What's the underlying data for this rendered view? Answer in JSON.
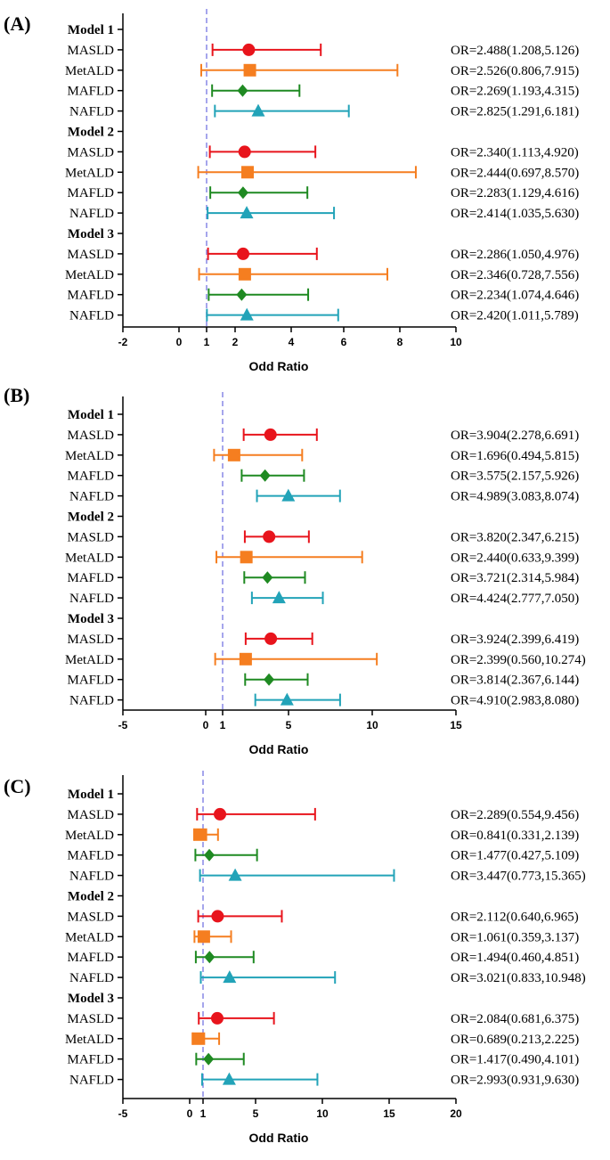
{
  "chart_data": [
    {
      "type": "forest",
      "panel_label": "(A)",
      "xlabel": "Odd Ratio",
      "xlim": [
        -2,
        10
      ],
      "xticks": [
        "-2",
        "0",
        "1",
        "2",
        "4",
        "6",
        "8",
        "10"
      ],
      "reference_line": 1,
      "models": [
        {
          "name": "Model 1",
          "rows": [
            {
              "label": "MASLD",
              "or": 2.488,
              "lo": 1.208,
              "hi": 5.126,
              "text": "OR=2.488(1.208,5.126)",
              "color": "#e8141c",
              "marker": "circle"
            },
            {
              "label": "MetALD",
              "or": 2.526,
              "lo": 0.806,
              "hi": 7.915,
              "text": "OR=2.526(0.806,7.915)",
              "color": "#f57e20",
              "marker": "square"
            },
            {
              "label": "MAFLD",
              "or": 2.269,
              "lo": 1.193,
              "hi": 4.315,
              "text": "OR=2.269(1.193,4.315)",
              "color": "#1f8a22",
              "marker": "diamond"
            },
            {
              "label": "NAFLD",
              "or": 2.825,
              "lo": 1.291,
              "hi": 6.181,
              "text": "OR=2.825(1.291,6.181)",
              "color": "#22a3b8",
              "marker": "triangle"
            }
          ]
        },
        {
          "name": "Model 2",
          "rows": [
            {
              "label": "MASLD",
              "or": 2.34,
              "lo": 1.113,
              "hi": 4.92,
              "text": "OR=2.340(1.113,4.920)",
              "color": "#e8141c",
              "marker": "circle"
            },
            {
              "label": "MetALD",
              "or": 2.444,
              "lo": 0.697,
              "hi": 8.57,
              "text": "OR=2.444(0.697,8.570)",
              "color": "#f57e20",
              "marker": "square"
            },
            {
              "label": "MAFLD",
              "or": 2.283,
              "lo": 1.129,
              "hi": 4.616,
              "text": "OR=2.283(1.129,4.616)",
              "color": "#1f8a22",
              "marker": "diamond"
            },
            {
              "label": "NAFLD",
              "or": 2.414,
              "lo": 1.035,
              "hi": 5.63,
              "text": "OR=2.414(1.035,5.630)",
              "color": "#22a3b8",
              "marker": "triangle"
            }
          ]
        },
        {
          "name": "Model 3",
          "rows": [
            {
              "label": "MASLD",
              "or": 2.286,
              "lo": 1.05,
              "hi": 4.976,
              "text": "OR=2.286(1.050,4.976)",
              "color": "#e8141c",
              "marker": "circle"
            },
            {
              "label": "MetALD",
              "or": 2.346,
              "lo": 0.728,
              "hi": 7.556,
              "text": "OR=2.346(0.728,7.556)",
              "color": "#f57e20",
              "marker": "square"
            },
            {
              "label": "MAFLD",
              "or": 2.234,
              "lo": 1.074,
              "hi": 4.646,
              "text": "OR=2.234(1.074,4.646)",
              "color": "#1f8a22",
              "marker": "diamond"
            },
            {
              "label": "NAFLD",
              "or": 2.42,
              "lo": 1.011,
              "hi": 5.789,
              "text": "OR=2.420(1.011,5.789)",
              "color": "#22a3b8",
              "marker": "triangle"
            }
          ]
        }
      ]
    },
    {
      "type": "forest",
      "panel_label": "(B)",
      "xlabel": "Odd Ratio",
      "xlim": [
        -5,
        15
      ],
      "xticks": [
        "-5",
        "0",
        "1",
        "5",
        "10",
        "15"
      ],
      "reference_line": 1,
      "models": [
        {
          "name": "Model 1",
          "rows": [
            {
              "label": "MASLD",
              "or": 3.904,
              "lo": 2.278,
              "hi": 6.691,
              "text": "OR=3.904(2.278,6.691)",
              "color": "#e8141c",
              "marker": "circle"
            },
            {
              "label": "MetALD",
              "or": 1.696,
              "lo": 0.494,
              "hi": 5.815,
              "text": "OR=1.696(0.494,5.815)",
              "color": "#f57e20",
              "marker": "square"
            },
            {
              "label": "MAFLD",
              "or": 3.575,
              "lo": 2.157,
              "hi": 5.926,
              "text": "OR=3.575(2.157,5.926)",
              "color": "#1f8a22",
              "marker": "diamond"
            },
            {
              "label": "NAFLD",
              "or": 4.989,
              "lo": 3.083,
              "hi": 8.074,
              "text": "OR=4.989(3.083,8.074)",
              "color": "#22a3b8",
              "marker": "triangle"
            }
          ]
        },
        {
          "name": "Model 2",
          "rows": [
            {
              "label": "MASLD",
              "or": 3.82,
              "lo": 2.347,
              "hi": 6.215,
              "text": "OR=3.820(2.347,6.215)",
              "color": "#e8141c",
              "marker": "circle"
            },
            {
              "label": "MetALD",
              "or": 2.44,
              "lo": 0.633,
              "hi": 9.399,
              "text": "OR=2.440(0.633,9.399)",
              "color": "#f57e20",
              "marker": "square"
            },
            {
              "label": "MAFLD",
              "or": 3.721,
              "lo": 2.314,
              "hi": 5.984,
              "text": "OR=3.721(2.314,5.984)",
              "color": "#1f8a22",
              "marker": "diamond"
            },
            {
              "label": "NAFLD",
              "or": 4.424,
              "lo": 2.777,
              "hi": 7.05,
              "text": "OR=4.424(2.777,7.050)",
              "color": "#22a3b8",
              "marker": "triangle"
            }
          ]
        },
        {
          "name": "Model 3",
          "rows": [
            {
              "label": "MASLD",
              "or": 3.924,
              "lo": 2.399,
              "hi": 6.419,
              "text": "OR=3.924(2.399,6.419)",
              "color": "#e8141c",
              "marker": "circle"
            },
            {
              "label": "MetALD",
              "or": 2.399,
              "lo": 0.56,
              "hi": 10.274,
              "text": "OR=2.399(0.560,10.274)",
              "color": "#f57e20",
              "marker": "square"
            },
            {
              "label": "MAFLD",
              "or": 3.814,
              "lo": 2.367,
              "hi": 6.144,
              "text": "OR=3.814(2.367,6.144)",
              "color": "#1f8a22",
              "marker": "diamond"
            },
            {
              "label": "NAFLD",
              "or": 4.91,
              "lo": 2.983,
              "hi": 8.08,
              "text": "OR=4.910(2.983,8.080)",
              "color": "#22a3b8",
              "marker": "triangle"
            }
          ]
        }
      ]
    },
    {
      "type": "forest",
      "panel_label": "(C)",
      "xlabel": "Odd Ratio",
      "xlim": [
        -5,
        20
      ],
      "xticks": [
        "-5",
        "0",
        "1",
        "5",
        "10",
        "15",
        "20"
      ],
      "reference_line": 1,
      "models": [
        {
          "name": "Model 1",
          "rows": [
            {
              "label": "MASLD",
              "or": 2.289,
              "lo": 0.554,
              "hi": 9.456,
              "text": "OR=2.289(0.554,9.456)",
              "color": "#e8141c",
              "marker": "circle"
            },
            {
              "label": "MetALD",
              "or": 0.841,
              "lo": 0.331,
              "hi": 2.139,
              "text": "OR=0.841(0.331,2.139)",
              "color": "#f57e20",
              "marker": "square"
            },
            {
              "label": "MAFLD",
              "or": 1.477,
              "lo": 0.427,
              "hi": 5.109,
              "text": "OR=1.477(0.427,5.109)",
              "color": "#1f8a22",
              "marker": "diamond"
            },
            {
              "label": "NAFLD",
              "or": 3.447,
              "lo": 0.773,
              "hi": 15.365,
              "text": "OR=3.447(0.773,15.365)",
              "color": "#22a3b8",
              "marker": "triangle"
            }
          ]
        },
        {
          "name": "Model 2",
          "rows": [
            {
              "label": "MASLD",
              "or": 2.112,
              "lo": 0.64,
              "hi": 6.965,
              "text": "OR=2.112(0.640,6.965)",
              "color": "#e8141c",
              "marker": "circle"
            },
            {
              "label": "MetALD",
              "or": 1.061,
              "lo": 0.359,
              "hi": 3.137,
              "text": "OR=1.061(0.359,3.137)",
              "color": "#f57e20",
              "marker": "square"
            },
            {
              "label": "MAFLD",
              "or": 1.494,
              "lo": 0.46,
              "hi": 4.851,
              "text": "OR=1.494(0.460,4.851)",
              "color": "#1f8a22",
              "marker": "diamond"
            },
            {
              "label": "NAFLD",
              "or": 3.021,
              "lo": 0.833,
              "hi": 10.948,
              "text": "OR=3.021(0.833,10.948)",
              "color": "#22a3b8",
              "marker": "triangle"
            }
          ]
        },
        {
          "name": "Model 3",
          "rows": [
            {
              "label": "MASLD",
              "or": 2.084,
              "lo": 0.681,
              "hi": 6.375,
              "text": "OR=2.084(0.681,6.375)",
              "color": "#e8141c",
              "marker": "circle"
            },
            {
              "label": "MetALD",
              "or": 0.689,
              "lo": 0.213,
              "hi": 2.225,
              "text": "OR=0.689(0.213,2.225)",
              "color": "#f57e20",
              "marker": "square"
            },
            {
              "label": "MAFLD",
              "or": 1.417,
              "lo": 0.49,
              "hi": 4.101,
              "text": "OR=1.417(0.490,4.101)",
              "color": "#1f8a22",
              "marker": "diamond"
            },
            {
              "label": "NAFLD",
              "or": 2.993,
              "lo": 0.931,
              "hi": 9.63,
              "text": "OR=2.993(0.931,9.630)",
              "color": "#22a3b8",
              "marker": "triangle"
            }
          ]
        }
      ]
    }
  ],
  "colors": {
    "reference_line": "#8f8fe8",
    "axis": "#000000"
  }
}
